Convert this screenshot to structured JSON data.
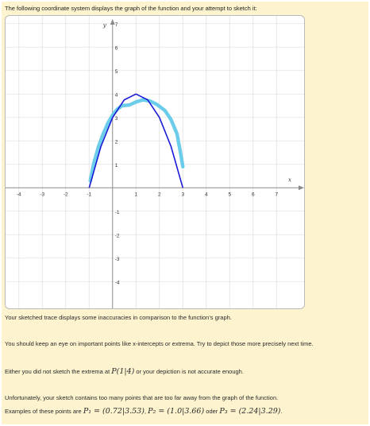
{
  "intro_text": "The following coordinate system displays the graph of the function and your attempt to sketch it:",
  "chart_data": {
    "type": "line",
    "xlabel": "x",
    "ylabel": "y",
    "xlim": [
      -4.5,
      7.5
    ],
    "ylim": [
      -4.5,
      7.5
    ],
    "x_ticks": [
      -4,
      -3,
      -2,
      -1,
      1,
      2,
      3,
      4,
      5,
      6,
      7
    ],
    "y_ticks": [
      -4,
      -3,
      -2,
      -1,
      1,
      2,
      3,
      4,
      5,
      6,
      7
    ],
    "grid": true,
    "series": [
      {
        "role": "function-graph",
        "color": "#1a1ad6",
        "x": [
          -1,
          -0.5,
          0,
          0.5,
          1,
          1.5,
          2,
          2.5,
          3
        ],
        "y": [
          0,
          1.75,
          3,
          3.75,
          4,
          3.75,
          3,
          1.75,
          0
        ]
      },
      {
        "role": "sketched-trace",
        "color": "#5bc8e8",
        "x": [
          -0.95,
          -0.8,
          -0.6,
          -0.4,
          -0.2,
          0,
          0.2,
          0.4,
          0.72,
          1.0,
          1.3,
          1.6,
          1.9,
          2.24,
          2.5,
          2.75,
          2.9,
          3.0
        ],
        "y": [
          0.3,
          1.05,
          1.75,
          2.3,
          2.75,
          3.1,
          3.35,
          3.5,
          3.53,
          3.66,
          3.75,
          3.7,
          3.55,
          3.29,
          2.9,
          2.3,
          1.5,
          0.9
        ]
      }
    ]
  },
  "feedback": {
    "line1": "Your sketched trace displays some inaccuracies in comparison to the function's graph.",
    "line2": "You should keep an eye on important points like x-intercepts or extrema. Try to depict those more precisely next time.",
    "line3_pre": "Either you did not sketch the extrema at ",
    "line3_point": "P(1|4)",
    "line3_post": " or your depiction is not accurate enough.",
    "line4": "Unfortunately, your sketch contains too many points that are too far away from the graph of the function.",
    "line5_pre": "Examples of these points are ",
    "p1": "P₁ = (0.72|3.53)",
    "sep1": ", ",
    "p2": "P₂ = (1.0|3.66)",
    "sep2": " oder ",
    "p3": "P₃ = (2.24|3.29)",
    "end": "."
  }
}
